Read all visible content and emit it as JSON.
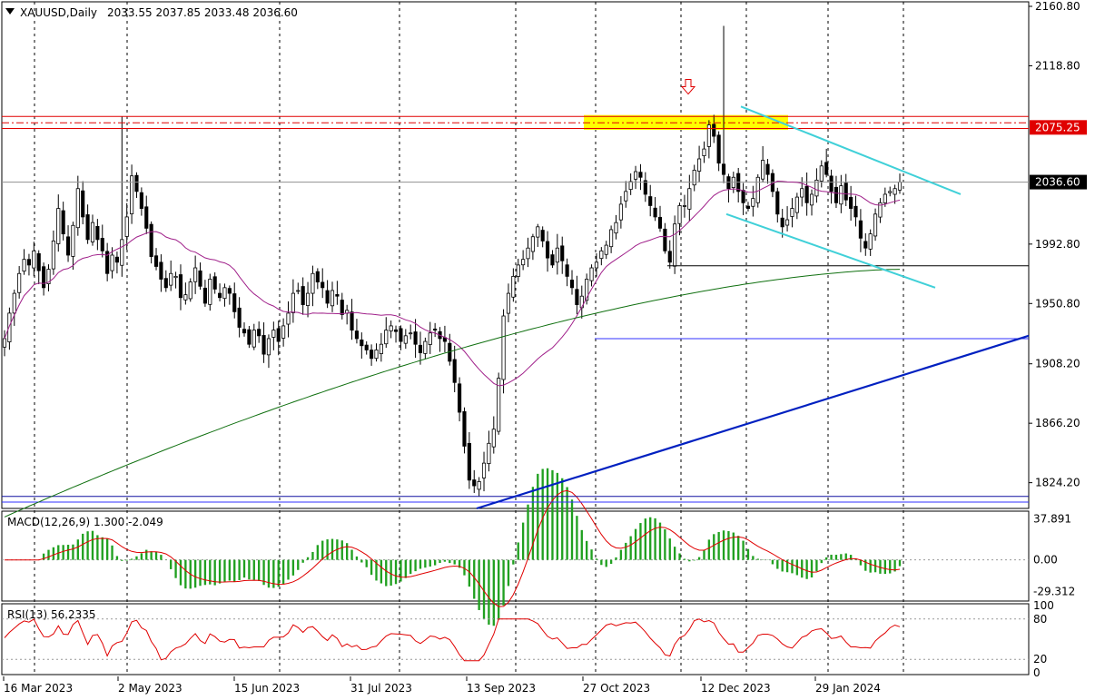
{
  "header": {
    "symbol": "XAUUSD,Daily",
    "ohlc": "2033.55 2037.85 2033.48 2036.60"
  },
  "chart_data": {
    "type": "candlestick",
    "price_axis": {
      "ticks": [
        "2160.80",
        "2118.80",
        "1992.80",
        "1950.80",
        "1908.20",
        "1866.20",
        "1824.20"
      ],
      "tick_values": [
        2160.8,
        2118.8,
        1992.8,
        1950.8,
        1908.2,
        1866.2,
        1824.2
      ],
      "range": [
        1806,
        2164
      ],
      "badges": [
        {
          "label": "2075.25",
          "value": 2075.25,
          "bg": "#e00000",
          "fg": "#ffffff"
        },
        {
          "label": "2036.60",
          "value": 2036.6,
          "bg": "#000000",
          "fg": "#ffffff"
        }
      ]
    },
    "x_axis": {
      "labels": [
        "16 Mar 2023",
        "2 May 2023",
        "15 Jun 2023",
        "31 Jul 2023",
        "13 Sep 2023",
        "27 Oct 2023",
        "12 Dec 2023",
        "29 Jan 2024"
      ]
    },
    "horizontal_levels": [
      {
        "value": 2083.0,
        "color": "#e00000",
        "style": "solid"
      },
      {
        "value": 2078.5,
        "color": "#e00000",
        "style": "dashdot"
      },
      {
        "value": 2074.5,
        "color": "#e00000",
        "style": "solid"
      },
      {
        "value": 2036.6,
        "color": "#909090",
        "style": "solid"
      },
      {
        "value": 1977.5,
        "color": "#000000",
        "style": "solid"
      },
      {
        "value": 1926.0,
        "color": "#3030ff",
        "style": "solid"
      },
      {
        "value": 1814.5,
        "color": "#1010a0",
        "style": "solid"
      },
      {
        "value": 1810.5,
        "color": "#3030ff",
        "style": "solid"
      }
    ],
    "zone": {
      "from": 2073.5,
      "to": 2084.0,
      "color": "#ffff00"
    },
    "close_series": [
      1926,
      1944,
      1958,
      1972,
      1982,
      1978,
      1988,
      1974,
      1962,
      1975,
      1995,
      2018,
      2000,
      1985,
      2006,
      2032,
      2012,
      1996,
      2008,
      1996,
      1988,
      1972,
      1985,
      1980,
      1996,
      2012,
      2041,
      2030,
      2018,
      2004,
      1984,
      1977,
      1968,
      1962,
      1972,
      1970,
      1955,
      1957,
      1966,
      1976,
      1963,
      1951,
      1968,
      1961,
      1955,
      1962,
      1958,
      1945,
      1934,
      1930,
      1922,
      1932,
      1928,
      1915,
      1926,
      1932,
      1924,
      1935,
      1944,
      1958,
      1960,
      1950,
      1958,
      1972,
      1966,
      1962,
      1951,
      1960,
      1956,
      1943,
      1946,
      1932,
      1926,
      1921,
      1918,
      1912,
      1918,
      1922,
      1932,
      1935,
      1931,
      1924,
      1928,
      1930,
      1922,
      1916,
      1924,
      1930,
      1932,
      1926,
      1924,
      1910,
      1895,
      1874,
      1850,
      1826,
      1822,
      1825,
      1838,
      1852,
      1862,
      1898,
      1942,
      1958,
      1970,
      1978,
      1982,
      1990,
      1998,
      2005,
      1995,
      1983,
      1978,
      1990,
      1981,
      1970,
      1962,
      1950,
      1956,
      1968,
      1976,
      1980,
      1988,
      1992,
      2003,
      2008,
      2021,
      2030,
      2037,
      2044,
      2040,
      2028,
      2020,
      2012,
      2004,
      1988,
      1980,
      2007,
      2020,
      2020,
      2032,
      2045,
      2053,
      2060,
      2077,
      2069,
      2050,
      2042,
      2032,
      2040,
      2030,
      2022,
      2018,
      2025,
      2040,
      2052,
      2042,
      2030,
      2014,
      2005,
      2010,
      2018,
      2026,
      2032,
      2022,
      2028,
      2038,
      2048,
      2042,
      2030,
      2022,
      2034,
      2024,
      2018,
      2012,
      1997,
      1990,
      2000,
      2014,
      2022,
      2028,
      2030,
      2032,
      2036.6
    ],
    "annotations": [
      "down arrow near 2100 above November high"
    ],
    "indicators": [
      {
        "name": "MACD(12,26,9) 1.300 -2.049",
        "ticks": [
          "37.891",
          "0.00",
          "-29.312"
        ],
        "tick_values": [
          37.891,
          0,
          -29.312
        ]
      },
      {
        "name": "RSI(13) 56.2335",
        "ticks": [
          "100",
          "80",
          "20",
          "0"
        ],
        "tick_values": [
          100,
          80,
          20,
          0
        ]
      }
    ]
  },
  "colors": {
    "up_candle": "#ffffff",
    "down_candle": "#000000",
    "candle_outline": "#000000",
    "ma_fast": "#a0208a",
    "ma_slow": "#107010",
    "channel": "#40d0d8",
    "trendline": "#0020c0",
    "macd_hist": "#20a020",
    "macd_signal": "#e00000",
    "rsi_line": "#e00000",
    "grid": "#000000"
  }
}
